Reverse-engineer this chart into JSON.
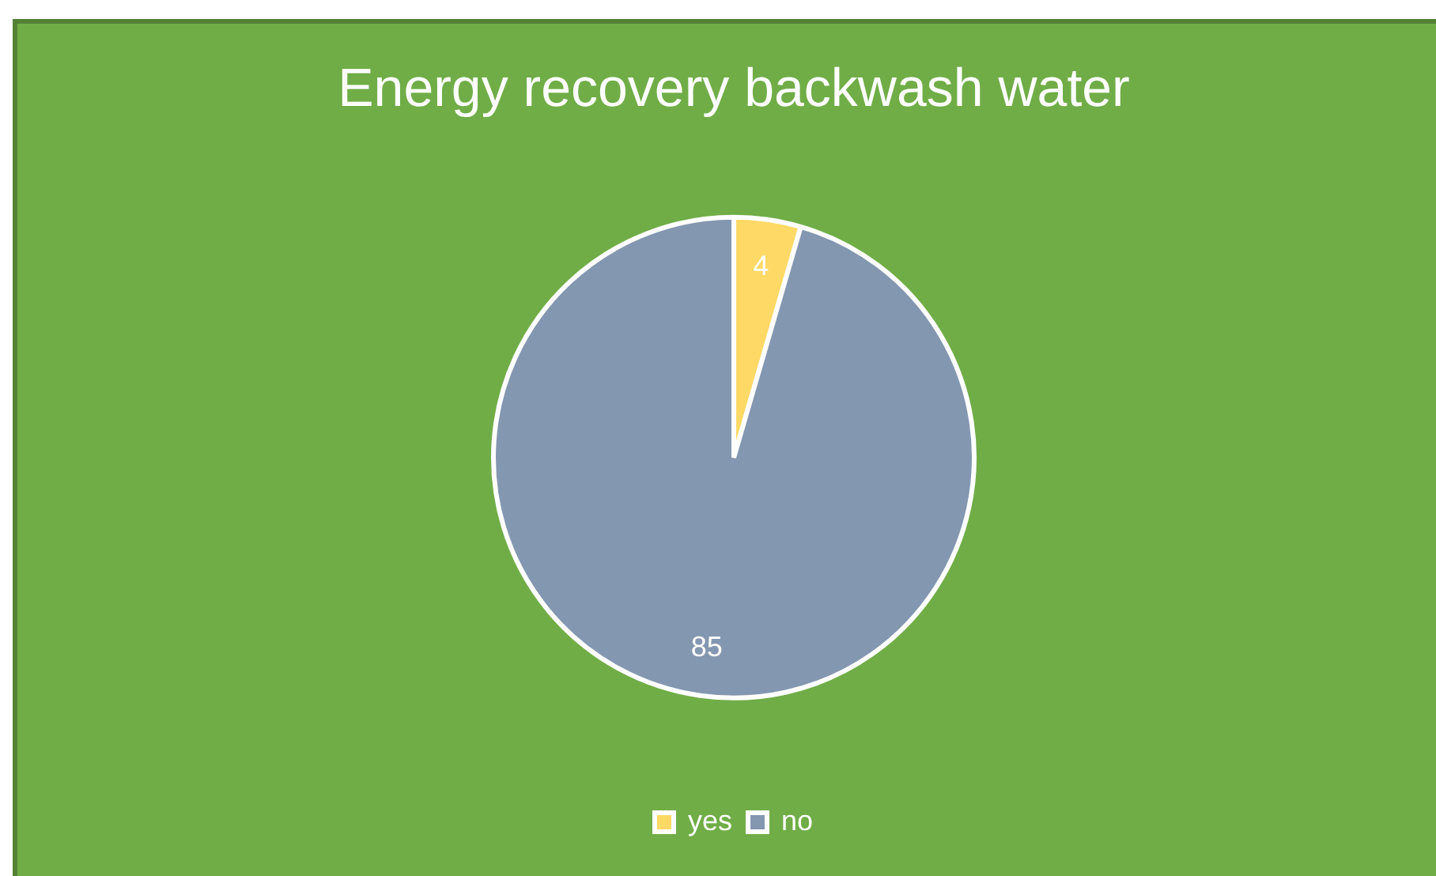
{
  "chart_data": {
    "type": "pie",
    "title": "Energy recovery backwash water",
    "categories": [
      "yes",
      "no"
    ],
    "values": [
      4,
      85
    ],
    "colors": [
      "#ffd966",
      "#8497b0"
    ],
    "data_labels": true,
    "legend": "bottom"
  }
}
